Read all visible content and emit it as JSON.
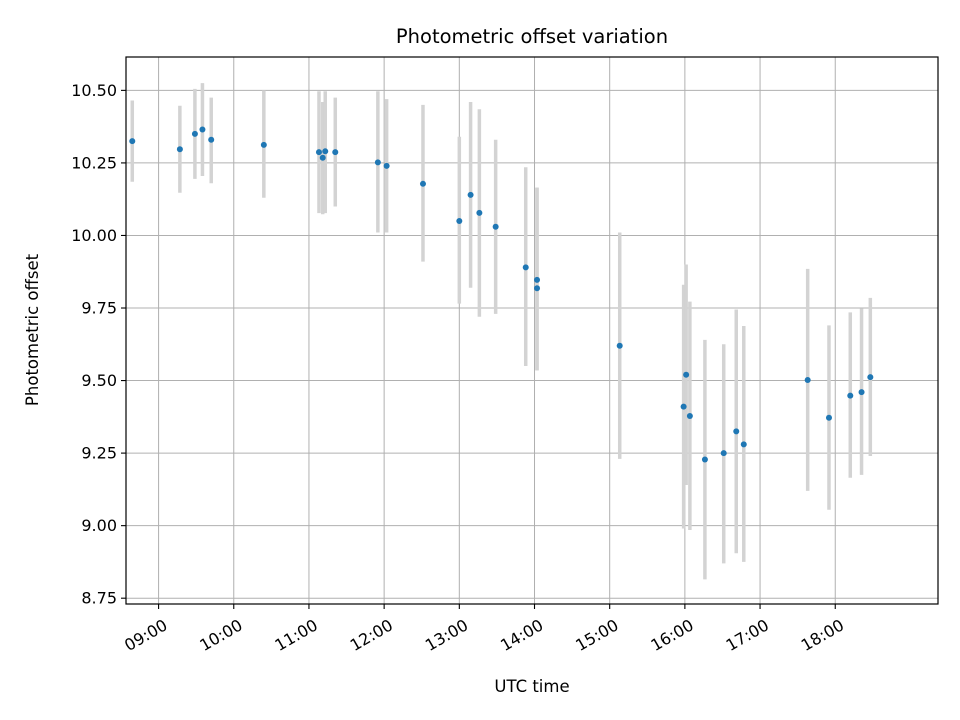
{
  "chart_data": {
    "type": "scatter",
    "title": "Photometric offset variation",
    "xlabel": "UTC time",
    "ylabel": "Photometric offset",
    "grid": true,
    "xlim": [
      "08:34",
      "19:22"
    ],
    "ylim": [
      8.73,
      10.615
    ],
    "x_ticks": [
      "09:00",
      "10:00",
      "11:00",
      "12:00",
      "13:00",
      "14:00",
      "15:00",
      "16:00",
      "17:00",
      "18:00"
    ],
    "y_ticks": [
      8.75,
      9.0,
      9.25,
      9.5,
      9.75,
      10.0,
      10.25,
      10.5
    ],
    "y_tick_labels": [
      "8.75",
      "9.00",
      "9.25",
      "9.50",
      "9.75",
      "10.00",
      "10.25",
      "10.50"
    ],
    "point_color": "#1f77b4",
    "errorbar_color": "#d3d3d3",
    "points": [
      {
        "time": "08:39",
        "y": 10.325,
        "low": 10.185,
        "high": 10.465
      },
      {
        "time": "09:17",
        "y": 10.297,
        "low": 10.147,
        "high": 10.447
      },
      {
        "time": "09:29",
        "y": 10.35,
        "low": 10.195,
        "high": 10.505
      },
      {
        "time": "09:35",
        "y": 10.365,
        "low": 10.205,
        "high": 10.525
      },
      {
        "time": "09:42",
        "y": 10.33,
        "low": 10.18,
        "high": 10.475
      },
      {
        "time": "10:24",
        "y": 10.312,
        "low": 10.13,
        "high": 10.5
      },
      {
        "time": "11:08",
        "y": 10.287,
        "low": 10.077,
        "high": 10.497
      },
      {
        "time": "11:11",
        "y": 10.268,
        "low": 10.073,
        "high": 10.46
      },
      {
        "time": "11:13",
        "y": 10.29,
        "low": 10.077,
        "high": 10.497
      },
      {
        "time": "11:21",
        "y": 10.287,
        "low": 10.1,
        "high": 10.475
      },
      {
        "time": "11:55",
        "y": 10.252,
        "low": 10.01,
        "high": 10.497
      },
      {
        "time": "12:02",
        "y": 10.24,
        "low": 10.01,
        "high": 10.47
      },
      {
        "time": "12:31",
        "y": 10.178,
        "low": 9.91,
        "high": 10.45
      },
      {
        "time": "13:00",
        "y": 10.05,
        "low": 9.765,
        "high": 10.34
      },
      {
        "time": "13:09",
        "y": 10.14,
        "low": 9.82,
        "high": 10.46
      },
      {
        "time": "13:16",
        "y": 10.078,
        "low": 9.72,
        "high": 10.435
      },
      {
        "time": "13:29",
        "y": 10.03,
        "low": 9.73,
        "high": 10.33
      },
      {
        "time": "13:53",
        "y": 9.89,
        "low": 9.55,
        "high": 10.235
      },
      {
        "time": "14:02",
        "y": 9.818,
        "low": 9.535,
        "high": 10.165
      },
      {
        "time": "14:02",
        "y": 9.847,
        "low": 9.535,
        "high": 10.165
      },
      {
        "time": "15:08",
        "y": 9.62,
        "low": 9.23,
        "high": 10.01
      },
      {
        "time": "15:59",
        "y": 9.41,
        "low": 8.99,
        "high": 9.83
      },
      {
        "time": "16:01",
        "y": 9.52,
        "low": 9.14,
        "high": 9.9
      },
      {
        "time": "16:04",
        "y": 9.378,
        "low": 8.985,
        "high": 9.772
      },
      {
        "time": "16:16",
        "y": 9.228,
        "low": 8.815,
        "high": 9.64
      },
      {
        "time": "16:31",
        "y": 9.25,
        "low": 8.87,
        "high": 9.625
      },
      {
        "time": "16:41",
        "y": 9.325,
        "low": 8.905,
        "high": 9.745
      },
      {
        "time": "16:47",
        "y": 9.28,
        "low": 8.875,
        "high": 9.688
      },
      {
        "time": "17:38",
        "y": 9.502,
        "low": 9.12,
        "high": 9.885
      },
      {
        "time": "17:55",
        "y": 9.372,
        "low": 9.055,
        "high": 9.69
      },
      {
        "time": "18:12",
        "y": 9.448,
        "low": 9.165,
        "high": 9.735
      },
      {
        "time": "18:21",
        "y": 9.46,
        "low": 9.175,
        "high": 9.748
      },
      {
        "time": "18:28",
        "y": 9.512,
        "low": 9.24,
        "high": 9.785
      }
    ]
  }
}
